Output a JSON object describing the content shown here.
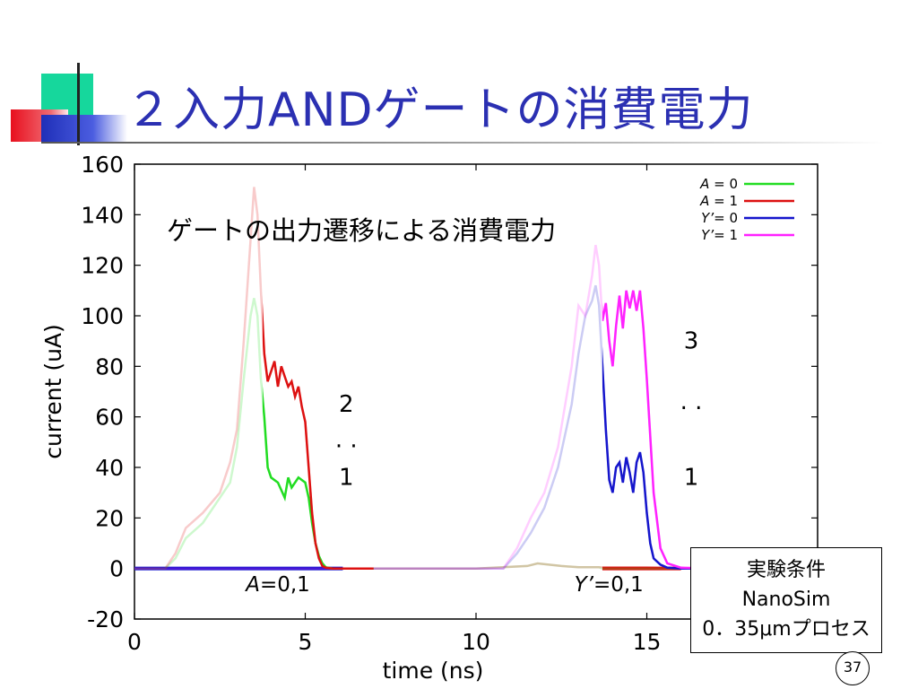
{
  "slide": {
    "title": "２入力ANDゲートの消費電力",
    "annotation": "ゲートの出力遷移による消費電力",
    "conditions": {
      "heading": "実験条件",
      "simulator": "NanoSim",
      "process": "0．35μmプロセス"
    },
    "page_number": "37",
    "colors": {
      "title": "#2b30b2",
      "accent_green": "#16d79c",
      "accent_blue": "#1f2fb8",
      "accent_red": "#e8101e"
    }
  },
  "chart_data": {
    "type": "line",
    "xlabel": "time (ns)",
    "ylabel": "current (uA)",
    "xlim": [
      0,
      20
    ],
    "ylim": [
      -20,
      160
    ],
    "xticks": [
      0,
      5,
      10,
      15
    ],
    "yticks": [
      -20,
      0,
      20,
      40,
      60,
      80,
      100,
      120,
      140,
      160
    ],
    "legend_position": "top-right",
    "series": [
      {
        "name": "A = 0",
        "legend_var": "A",
        "legend_rest": " = 0",
        "color": "#22dd22",
        "x": [
          0,
          0.9,
          1.2,
          1.5,
          2.0,
          2.5,
          2.8,
          3.0,
          3.2,
          3.4,
          3.5,
          3.6,
          3.7,
          3.8,
          3.9,
          4.0,
          4.2,
          4.4,
          4.5,
          4.6,
          4.8,
          5.0,
          5.1,
          5.2,
          5.3,
          5.4,
          5.5,
          5.6,
          5.8,
          6.1,
          7,
          10,
          11.5,
          11.8,
          12.5,
          13,
          13.2,
          13.6,
          13.7,
          13.9,
          14.5,
          15.5,
          16,
          20
        ],
        "y": [
          0,
          0,
          4,
          12,
          18,
          28,
          34,
          48,
          75,
          100,
          107,
          100,
          75,
          60,
          40,
          36,
          34,
          28,
          36,
          32,
          36,
          34,
          28,
          18,
          10,
          5,
          2,
          0.5,
          0,
          0,
          0,
          0,
          1,
          2,
          1,
          0.5,
          0.5,
          0.5,
          0,
          0,
          0,
          0,
          0,
          0
        ]
      },
      {
        "name": "A = 1",
        "legend_var": "A",
        "legend_rest": " = 1",
        "color": "#dd1111",
        "x": [
          0,
          0.9,
          1.2,
          1.5,
          2.0,
          2.5,
          2.8,
          3.0,
          3.2,
          3.4,
          3.5,
          3.6,
          3.7,
          3.8,
          3.9,
          4.0,
          4.1,
          4.2,
          4.3,
          4.4,
          4.5,
          4.6,
          4.7,
          4.8,
          4.9,
          5.0,
          5.1,
          5.2,
          5.3,
          5.4,
          5.5,
          5.6,
          5.8,
          6.1,
          7,
          10,
          11.5,
          11.8,
          12.5,
          13,
          13.5,
          13.6,
          14,
          15,
          16,
          20
        ],
        "y": [
          0,
          0,
          6,
          16,
          22,
          30,
          42,
          55,
          90,
          130,
          151,
          140,
          110,
          85,
          74,
          78,
          82,
          72,
          80,
          76,
          72,
          74,
          68,
          72,
          64,
          58,
          40,
          22,
          10,
          4,
          1,
          0.3,
          0,
          0,
          0,
          0,
          1,
          2,
          1,
          0.5,
          0.5,
          0.5,
          0.5,
          0.5,
          0,
          0
        ]
      },
      {
        "name": "Y’= 0",
        "legend_var": "Y’",
        "legend_rest": "= 0",
        "color": "#1515cc",
        "x": [
          0,
          2,
          4,
          6,
          8,
          10.8,
          11.2,
          11.6,
          12,
          12.4,
          12.8,
          13.0,
          13.2,
          13.4,
          13.5,
          13.6,
          13.7,
          13.8,
          13.9,
          14.0,
          14.1,
          14.2,
          14.3,
          14.4,
          14.5,
          14.6,
          14.7,
          14.8,
          14.9,
          15.0,
          15.1,
          15.2,
          15.4,
          15.6,
          16,
          17,
          20
        ],
        "y": [
          0,
          0,
          0,
          0,
          0,
          0,
          6,
          14,
          24,
          40,
          65,
          85,
          100,
          106,
          112,
          104,
          80,
          55,
          35,
          30,
          40,
          42,
          34,
          44,
          38,
          30,
          42,
          46,
          38,
          22,
          10,
          4,
          1.5,
          0.3,
          0,
          0,
          0
        ]
      },
      {
        "name": "Y’= 1",
        "legend_var": "Y’",
        "legend_rest": "= 1",
        "color": "#ff22ff",
        "x": [
          0,
          2,
          4,
          6,
          8,
          10.8,
          11.2,
          11.6,
          12,
          12.4,
          12.8,
          13.0,
          13.2,
          13.4,
          13.5,
          13.6,
          13.7,
          13.8,
          13.9,
          14.0,
          14.1,
          14.2,
          14.3,
          14.4,
          14.5,
          14.6,
          14.7,
          14.8,
          14.9,
          15.0,
          15.2,
          15.4,
          15.6,
          16,
          17,
          20
        ],
        "y": [
          0,
          0,
          0,
          0,
          0,
          0,
          8,
          20,
          30,
          48,
          80,
          104,
          100,
          116,
          128,
          120,
          98,
          105,
          90,
          80,
          96,
          108,
          95,
          110,
          103,
          110,
          102,
          110,
          95,
          75,
          30,
          8,
          2,
          0.3,
          0,
          0
        ]
      }
    ],
    "fade_before_ns": 13.7,
    "input_bars": [
      {
        "label": "A=0,1",
        "label_var": "A",
        "label_rest": "=0,1",
        "x_start": 0,
        "x_end": 6.1,
        "label_x": 4.2,
        "color": "#1515cc"
      },
      {
        "label": "Y’=0,1",
        "label_var": "Y’",
        "label_rest": "=0,1",
        "x_start": 13.7,
        "x_end": 16,
        "label_x": 14.1,
        "color": "#dd1111"
      }
    ],
    "annotations": [
      {
        "text": "2",
        "x": 6.2,
        "y": 62
      },
      {
        "text": ". .",
        "x": 6.2,
        "y": 48
      },
      {
        "text": "1",
        "x": 6.2,
        "y": 33
      },
      {
        "text": "3",
        "x": 16.3,
        "y": 87
      },
      {
        "text": ". .",
        "x": 16.3,
        "y": 63
      },
      {
        "text": "1",
        "x": 16.3,
        "y": 33
      }
    ]
  }
}
